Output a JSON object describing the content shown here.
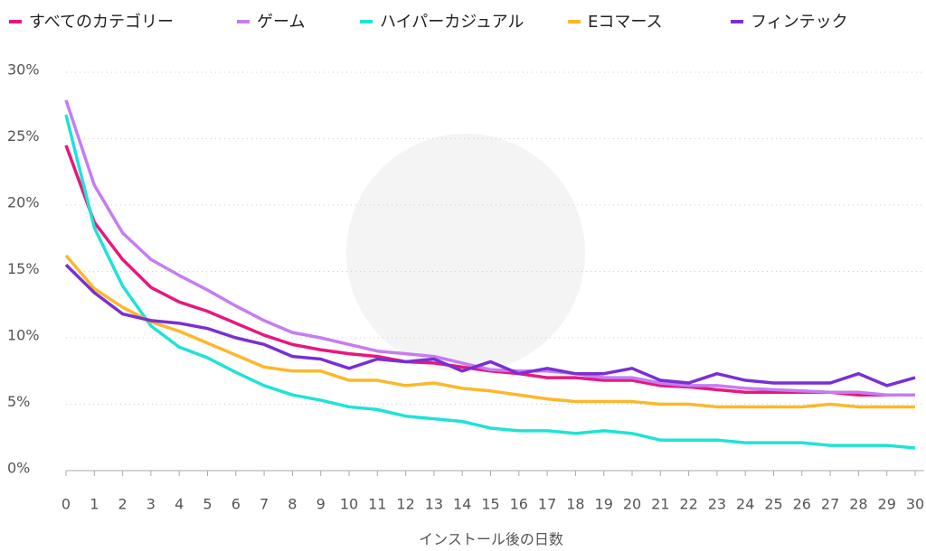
{
  "chart_data": {
    "type": "line",
    "x": [
      0,
      1,
      2,
      3,
      4,
      5,
      6,
      7,
      8,
      9,
      10,
      11,
      12,
      13,
      14,
      15,
      16,
      17,
      18,
      19,
      20,
      21,
      22,
      23,
      24,
      25,
      26,
      27,
      28,
      29,
      30
    ],
    "xlim": [
      0,
      30
    ],
    "xticks": [
      0,
      1,
      2,
      3,
      4,
      5,
      6,
      7,
      8,
      9,
      10,
      11,
      12,
      13,
      14,
      15,
      16,
      17,
      18,
      19,
      20,
      21,
      22,
      23,
      24,
      25,
      26,
      27,
      28,
      29,
      30
    ],
    "ylim": [
      0,
      30
    ],
    "yticks": [
      {
        "value": 0,
        "label": "0%"
      },
      {
        "value": 5,
        "label": "5%"
      },
      {
        "value": 10,
        "label": "10%"
      },
      {
        "value": 15,
        "label": "15%"
      },
      {
        "value": 20,
        "label": "20%"
      },
      {
        "value": 25,
        "label": "25%"
      },
      {
        "value": 30,
        "label": "30%"
      }
    ],
    "xlabel": "インストール後の日数",
    "grid": true,
    "legend": "top",
    "series": [
      {
        "name": "すべてのカテゴリー",
        "color": "#e8177e",
        "values": [
          24.5,
          18.7,
          15.9,
          13.8,
          12.7,
          12.0,
          11.1,
          10.2,
          9.5,
          9.1,
          8.8,
          8.6,
          8.2,
          8.1,
          7.8,
          7.5,
          7.3,
          7.0,
          7.0,
          6.8,
          6.8,
          6.4,
          6.3,
          6.1,
          5.9,
          5.9,
          5.9,
          5.9,
          5.7,
          5.7,
          5.7
        ]
      },
      {
        "name": "ゲーム",
        "color": "#c67cf2",
        "values": [
          27.9,
          21.5,
          17.9,
          15.9,
          14.7,
          13.6,
          12.4,
          11.3,
          10.4,
          10.0,
          9.5,
          9.0,
          8.8,
          8.6,
          8.1,
          7.6,
          7.5,
          7.5,
          7.3,
          7.0,
          7.0,
          6.6,
          6.4,
          6.4,
          6.2,
          6.1,
          6.0,
          5.9,
          5.9,
          5.7,
          5.7
        ]
      },
      {
        "name": "ハイパーカジュアル",
        "color": "#1ee3d6",
        "values": [
          26.8,
          18.3,
          13.9,
          10.9,
          9.3,
          8.5,
          7.4,
          6.4,
          5.7,
          5.3,
          4.8,
          4.6,
          4.1,
          3.9,
          3.7,
          3.2,
          3.0,
          3.0,
          2.8,
          3.0,
          2.8,
          2.3,
          2.3,
          2.3,
          2.1,
          2.1,
          2.1,
          1.9,
          1.9,
          1.9,
          1.7
        ]
      },
      {
        "name": "Eコマース",
        "color": "#fbb829",
        "values": [
          16.2,
          13.7,
          12.3,
          11.2,
          10.5,
          9.6,
          8.7,
          7.8,
          7.5,
          7.5,
          6.8,
          6.8,
          6.4,
          6.6,
          6.2,
          6.0,
          5.7,
          5.4,
          5.2,
          5.2,
          5.2,
          5.0,
          5.0,
          4.8,
          4.8,
          4.8,
          4.8,
          5.0,
          4.8,
          4.8,
          4.8
        ]
      },
      {
        "name": "フィンテック",
        "color": "#7a2fd4",
        "values": [
          15.5,
          13.4,
          11.8,
          11.3,
          11.1,
          10.7,
          10.0,
          9.5,
          8.6,
          8.4,
          7.7,
          8.4,
          8.2,
          8.4,
          7.5,
          8.2,
          7.3,
          7.7,
          7.3,
          7.3,
          7.7,
          6.8,
          6.6,
          7.3,
          6.8,
          6.6,
          6.6,
          6.6,
          7.3,
          6.4,
          7.0
        ]
      }
    ]
  }
}
